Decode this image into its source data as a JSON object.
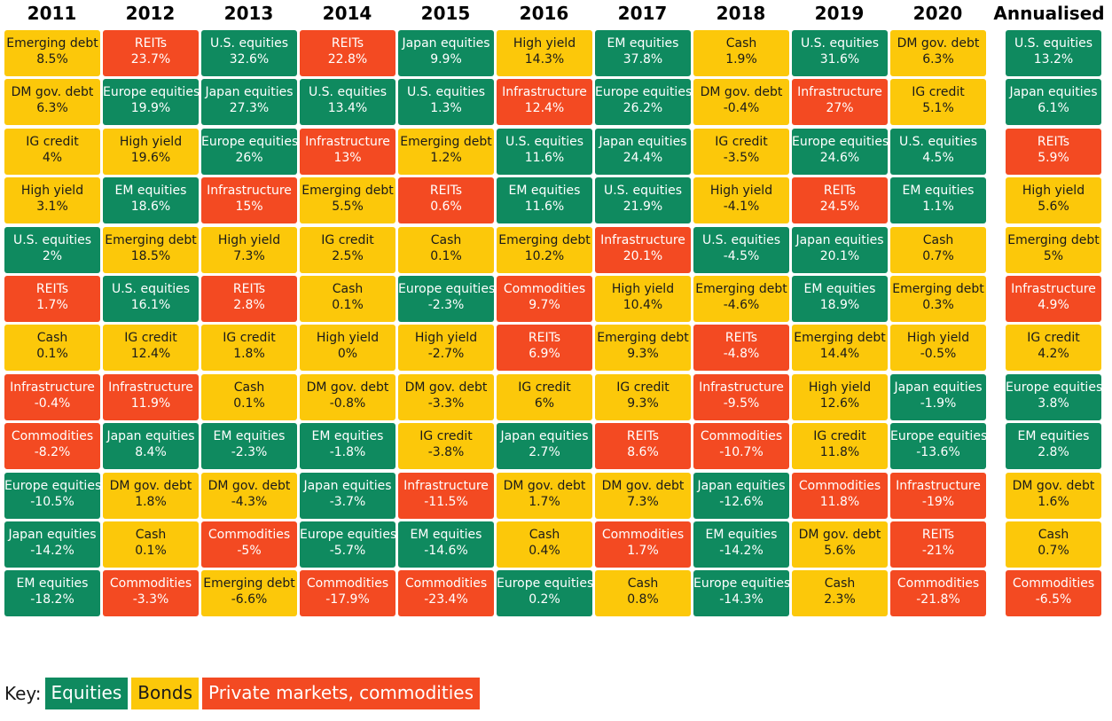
{
  "colors": {
    "equities": "#0f8a5f",
    "bonds": "#fcc80a",
    "private": "#f34a22"
  },
  "key": {
    "label": "Key:",
    "items": [
      {
        "text": "Equities",
        "class": "equities"
      },
      {
        "text": "Bonds",
        "class": "bonds"
      },
      {
        "text": "Private markets, commodities",
        "class": "private"
      }
    ]
  },
  "chart_data": {
    "type": "table",
    "columns": [
      "2011",
      "2012",
      "2013",
      "2014",
      "2015",
      "2016",
      "2017",
      "2018",
      "2019",
      "2020",
      "Annualised"
    ],
    "cells": [
      [
        {
          "label": "Emerging debt",
          "value": "8.5%",
          "class": "bonds"
        },
        {
          "label": "DM gov. debt",
          "value": "6.3%",
          "class": "bonds"
        },
        {
          "label": "IG credit",
          "value": "4%",
          "class": "bonds"
        },
        {
          "label": "High yield",
          "value": "3.1%",
          "class": "bonds"
        },
        {
          "label": "U.S. equities",
          "value": "2%",
          "class": "equities"
        },
        {
          "label": "REITs",
          "value": "1.7%",
          "class": "private"
        },
        {
          "label": "Cash",
          "value": "0.1%",
          "class": "bonds"
        },
        {
          "label": "Infrastructure",
          "value": "-0.4%",
          "class": "private"
        },
        {
          "label": "Commodities",
          "value": "-8.2%",
          "class": "private"
        },
        {
          "label": "Europe equities",
          "value": "-10.5%",
          "class": "equities"
        },
        {
          "label": "Japan equities",
          "value": "-14.2%",
          "class": "equities"
        },
        {
          "label": "EM equities",
          "value": "-18.2%",
          "class": "equities"
        }
      ],
      [
        {
          "label": "REITs",
          "value": "23.7%",
          "class": "private"
        },
        {
          "label": "Europe equities",
          "value": "19.9%",
          "class": "equities"
        },
        {
          "label": "High yield",
          "value": "19.6%",
          "class": "bonds"
        },
        {
          "label": "EM equities",
          "value": "18.6%",
          "class": "equities"
        },
        {
          "label": "Emerging debt",
          "value": "18.5%",
          "class": "bonds"
        },
        {
          "label": "U.S. equities",
          "value": "16.1%",
          "class": "equities"
        },
        {
          "label": "IG credit",
          "value": "12.4%",
          "class": "bonds"
        },
        {
          "label": "Infrastructure",
          "value": "11.9%",
          "class": "private"
        },
        {
          "label": "Japan equities",
          "value": "8.4%",
          "class": "equities"
        },
        {
          "label": "DM gov. debt",
          "value": "1.8%",
          "class": "bonds"
        },
        {
          "label": "Cash",
          "value": "0.1%",
          "class": "bonds"
        },
        {
          "label": "Commodities",
          "value": "-3.3%",
          "class": "private"
        }
      ],
      [
        {
          "label": "U.S. equities",
          "value": "32.6%",
          "class": "equities"
        },
        {
          "label": "Japan equities",
          "value": "27.3%",
          "class": "equities"
        },
        {
          "label": "Europe equities",
          "value": "26%",
          "class": "equities"
        },
        {
          "label": "Infrastructure",
          "value": "15%",
          "class": "private"
        },
        {
          "label": "High yield",
          "value": "7.3%",
          "class": "bonds"
        },
        {
          "label": "REITs",
          "value": "2.8%",
          "class": "private"
        },
        {
          "label": "IG credit",
          "value": "1.8%",
          "class": "bonds"
        },
        {
          "label": "Cash",
          "value": "0.1%",
          "class": "bonds"
        },
        {
          "label": "EM equities",
          "value": "-2.3%",
          "class": "equities"
        },
        {
          "label": "DM gov. debt",
          "value": "-4.3%",
          "class": "bonds"
        },
        {
          "label": "Commodities",
          "value": "-5%",
          "class": "private"
        },
        {
          "label": "Emerging debt",
          "value": "-6.6%",
          "class": "bonds"
        }
      ],
      [
        {
          "label": "REITs",
          "value": "22.8%",
          "class": "private"
        },
        {
          "label": "U.S. equities",
          "value": "13.4%",
          "class": "equities"
        },
        {
          "label": "Infrastructure",
          "value": "13%",
          "class": "private"
        },
        {
          "label": "Emerging debt",
          "value": "5.5%",
          "class": "bonds"
        },
        {
          "label": "IG credit",
          "value": "2.5%",
          "class": "bonds"
        },
        {
          "label": "Cash",
          "value": "0.1%",
          "class": "bonds"
        },
        {
          "label": "High yield",
          "value": "0%",
          "class": "bonds"
        },
        {
          "label": "DM gov. debt",
          "value": "-0.8%",
          "class": "bonds"
        },
        {
          "label": "EM equities",
          "value": "-1.8%",
          "class": "equities"
        },
        {
          "label": "Japan equities",
          "value": "-3.7%",
          "class": "equities"
        },
        {
          "label": "Europe equities",
          "value": "-5.7%",
          "class": "equities"
        },
        {
          "label": "Commodities",
          "value": "-17.9%",
          "class": "private"
        }
      ],
      [
        {
          "label": "Japan equities",
          "value": "9.9%",
          "class": "equities"
        },
        {
          "label": "U.S. equities",
          "value": "1.3%",
          "class": "equities"
        },
        {
          "label": "Emerging debt",
          "value": "1.2%",
          "class": "bonds"
        },
        {
          "label": "REITs",
          "value": "0.6%",
          "class": "private"
        },
        {
          "label": "Cash",
          "value": "0.1%",
          "class": "bonds"
        },
        {
          "label": "Europe equities",
          "value": "-2.3%",
          "class": "equities"
        },
        {
          "label": "High yield",
          "value": "-2.7%",
          "class": "bonds"
        },
        {
          "label": "DM gov. debt",
          "value": "-3.3%",
          "class": "bonds"
        },
        {
          "label": "IG credit",
          "value": "-3.8%",
          "class": "bonds"
        },
        {
          "label": "Infrastructure",
          "value": "-11.5%",
          "class": "private"
        },
        {
          "label": "EM equities",
          "value": "-14.6%",
          "class": "equities"
        },
        {
          "label": "Commodities",
          "value": "-23.4%",
          "class": "private"
        }
      ],
      [
        {
          "label": "High yield",
          "value": "14.3%",
          "class": "bonds"
        },
        {
          "label": "Infrastructure",
          "value": "12.4%",
          "class": "private"
        },
        {
          "label": "U.S. equities",
          "value": "11.6%",
          "class": "equities"
        },
        {
          "label": "EM equities",
          "value": "11.6%",
          "class": "equities"
        },
        {
          "label": "Emerging debt",
          "value": "10.2%",
          "class": "bonds"
        },
        {
          "label": "Commodities",
          "value": "9.7%",
          "class": "private"
        },
        {
          "label": "REITs",
          "value": "6.9%",
          "class": "private"
        },
        {
          "label": "IG credit",
          "value": "6%",
          "class": "bonds"
        },
        {
          "label": "Japan equities",
          "value": "2.7%",
          "class": "equities"
        },
        {
          "label": "DM gov. debt",
          "value": "1.7%",
          "class": "bonds"
        },
        {
          "label": "Cash",
          "value": "0.4%",
          "class": "bonds"
        },
        {
          "label": "Europe equities",
          "value": "0.2%",
          "class": "equities"
        }
      ],
      [
        {
          "label": "EM equities",
          "value": "37.8%",
          "class": "equities"
        },
        {
          "label": "Europe equities",
          "value": "26.2%",
          "class": "equities"
        },
        {
          "label": "Japan equities",
          "value": "24.4%",
          "class": "equities"
        },
        {
          "label": "U.S. equities",
          "value": "21.9%",
          "class": "equities"
        },
        {
          "label": "Infrastructure",
          "value": "20.1%",
          "class": "private"
        },
        {
          "label": "High yield",
          "value": "10.4%",
          "class": "bonds"
        },
        {
          "label": "Emerging debt",
          "value": "9.3%",
          "class": "bonds"
        },
        {
          "label": "IG credit",
          "value": "9.3%",
          "class": "bonds"
        },
        {
          "label": "REITs",
          "value": "8.6%",
          "class": "private"
        },
        {
          "label": "DM gov. debt",
          "value": "7.3%",
          "class": "bonds"
        },
        {
          "label": "Commodities",
          "value": "1.7%",
          "class": "private"
        },
        {
          "label": "Cash",
          "value": "0.8%",
          "class": "bonds"
        }
      ],
      [
        {
          "label": "Cash",
          "value": "1.9%",
          "class": "bonds"
        },
        {
          "label": "DM gov. debt",
          "value": "-0.4%",
          "class": "bonds"
        },
        {
          "label": "IG credit",
          "value": "-3.5%",
          "class": "bonds"
        },
        {
          "label": "High yield",
          "value": "-4.1%",
          "class": "bonds"
        },
        {
          "label": "U.S. equities",
          "value": "-4.5%",
          "class": "equities"
        },
        {
          "label": "Emerging debt",
          "value": "-4.6%",
          "class": "bonds"
        },
        {
          "label": "REITs",
          "value": "-4.8%",
          "class": "private"
        },
        {
          "label": "Infrastructure",
          "value": "-9.5%",
          "class": "private"
        },
        {
          "label": "Commodities",
          "value": "-10.7%",
          "class": "private"
        },
        {
          "label": "Japan equities",
          "value": "-12.6%",
          "class": "equities"
        },
        {
          "label": "EM equities",
          "value": "-14.2%",
          "class": "equities"
        },
        {
          "label": "Europe equities",
          "value": "-14.3%",
          "class": "equities"
        }
      ],
      [
        {
          "label": "U.S. equities",
          "value": "31.6%",
          "class": "equities"
        },
        {
          "label": "Infrastructure",
          "value": "27%",
          "class": "private"
        },
        {
          "label": "Europe equities",
          "value": "24.6%",
          "class": "equities"
        },
        {
          "label": "REITs",
          "value": "24.5%",
          "class": "private"
        },
        {
          "label": "Japan equities",
          "value": "20.1%",
          "class": "equities"
        },
        {
          "label": "EM equities",
          "value": "18.9%",
          "class": "equities"
        },
        {
          "label": "Emerging debt",
          "value": "14.4%",
          "class": "bonds"
        },
        {
          "label": "High yield",
          "value": "12.6%",
          "class": "bonds"
        },
        {
          "label": "IG credit",
          "value": "11.8%",
          "class": "bonds"
        },
        {
          "label": "Commodities",
          "value": "11.8%",
          "class": "private"
        },
        {
          "label": "DM gov. debt",
          "value": "5.6%",
          "class": "bonds"
        },
        {
          "label": "Cash",
          "value": "2.3%",
          "class": "bonds"
        }
      ],
      [
        {
          "label": "DM gov. debt",
          "value": "6.3%",
          "class": "bonds"
        },
        {
          "label": "IG credit",
          "value": "5.1%",
          "class": "bonds"
        },
        {
          "label": "U.S. equities",
          "value": "4.5%",
          "class": "equities"
        },
        {
          "label": "EM equities",
          "value": "1.1%",
          "class": "equities"
        },
        {
          "label": "Cash",
          "value": "0.7%",
          "class": "bonds"
        },
        {
          "label": "Emerging debt",
          "value": "0.3%",
          "class": "bonds"
        },
        {
          "label": "High yield",
          "value": "-0.5%",
          "class": "bonds"
        },
        {
          "label": "Japan equities",
          "value": "-1.9%",
          "class": "equities"
        },
        {
          "label": "Europe equities",
          "value": "-13.6%",
          "class": "equities"
        },
        {
          "label": "Infrastructure",
          "value": "-19%",
          "class": "private"
        },
        {
          "label": "REITs",
          "value": "-21%",
          "class": "private"
        },
        {
          "label": "Commodities",
          "value": "-21.8%",
          "class": "private"
        }
      ],
      [
        {
          "label": "U.S. equities",
          "value": "13.2%",
          "class": "equities"
        },
        {
          "label": "Japan equities",
          "value": "6.1%",
          "class": "equities"
        },
        {
          "label": "REITs",
          "value": "5.9%",
          "class": "private"
        },
        {
          "label": "High yield",
          "value": "5.6%",
          "class": "bonds"
        },
        {
          "label": "Emerging debt",
          "value": "5%",
          "class": "bonds"
        },
        {
          "label": "Infrastructure",
          "value": "4.9%",
          "class": "private"
        },
        {
          "label": "IG credit",
          "value": "4.2%",
          "class": "bonds"
        },
        {
          "label": "Europe equities",
          "value": "3.8%",
          "class": "equities"
        },
        {
          "label": "EM equities",
          "value": "2.8%",
          "class": "equities"
        },
        {
          "label": "DM gov. debt",
          "value": "1.6%",
          "class": "bonds"
        },
        {
          "label": "Cash",
          "value": "0.7%",
          "class": "bonds"
        },
        {
          "label": "Commodities",
          "value": "-6.5%",
          "class": "private"
        }
      ]
    ]
  }
}
